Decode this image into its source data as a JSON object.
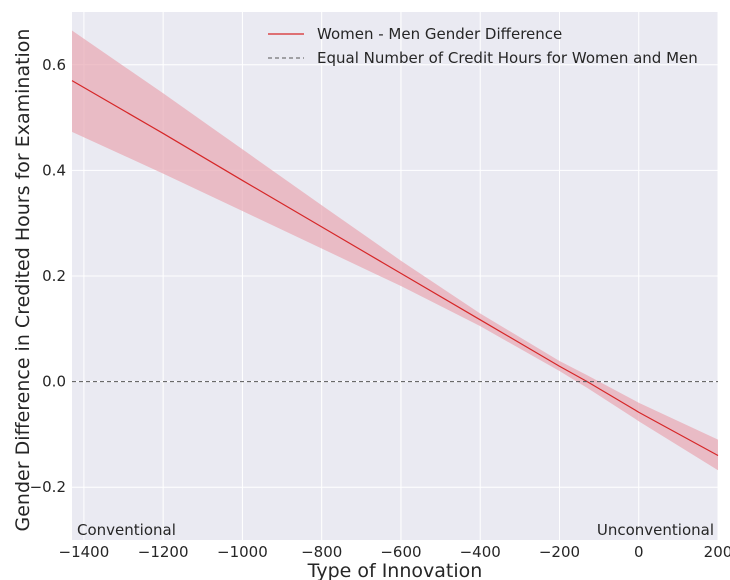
{
  "chart_data": {
    "type": "line",
    "xlabel": "Type of Innovation",
    "ylabel": "Gender Difference in Credited Hours for Examination",
    "xlim": [
      -1430,
      200
    ],
    "ylim": [
      -0.3,
      0.7
    ],
    "xticks": [
      -1400,
      -1200,
      -1000,
      -800,
      -600,
      -400,
      -200,
      0,
      200
    ],
    "xtick_labels": [
      "−1400",
      "−1200",
      "−1000",
      "−800",
      "−600",
      "−400",
      "−200",
      "0",
      "200"
    ],
    "yticks": [
      -0.2,
      0.0,
      0.2,
      0.4,
      0.6
    ],
    "ytick_labels": [
      "−0.2",
      "0.0",
      "0.2",
      "0.4",
      "0.6"
    ],
    "grid": true,
    "legend_position": "top-right",
    "annotations": {
      "left": "Conventional",
      "right": "Unconventional"
    },
    "series": [
      {
        "name": "Women - Men Gender Difference",
        "style": "solid",
        "color": "#d62728",
        "x": [
          -1430,
          -1200,
          -1000,
          -800,
          -600,
          -400,
          -200,
          -130,
          0,
          200
        ],
        "y": [
          0.57,
          0.47,
          0.381,
          0.293,
          0.205,
          0.117,
          0.029,
          0.0,
          -0.058,
          -0.14
        ],
        "ci_lower": [
          0.473,
          0.394,
          0.323,
          0.252,
          0.181,
          0.105,
          0.02,
          -0.012,
          -0.075,
          -0.168
        ],
        "ci_upper": [
          0.665,
          0.546,
          0.44,
          0.334,
          0.229,
          0.129,
          0.039,
          0.012,
          -0.04,
          -0.11
        ]
      },
      {
        "name": "Equal Number of Credit Hours for Women and Men",
        "style": "dashed",
        "color": "#555555",
        "x": [
          -1430,
          200
        ],
        "y": [
          0.0,
          0.0
        ]
      }
    ]
  },
  "colors": {
    "plot_background": "#eaeaf2",
    "grid": "#ffffff",
    "band": "#e8a7b2",
    "line": "#d62728"
  }
}
